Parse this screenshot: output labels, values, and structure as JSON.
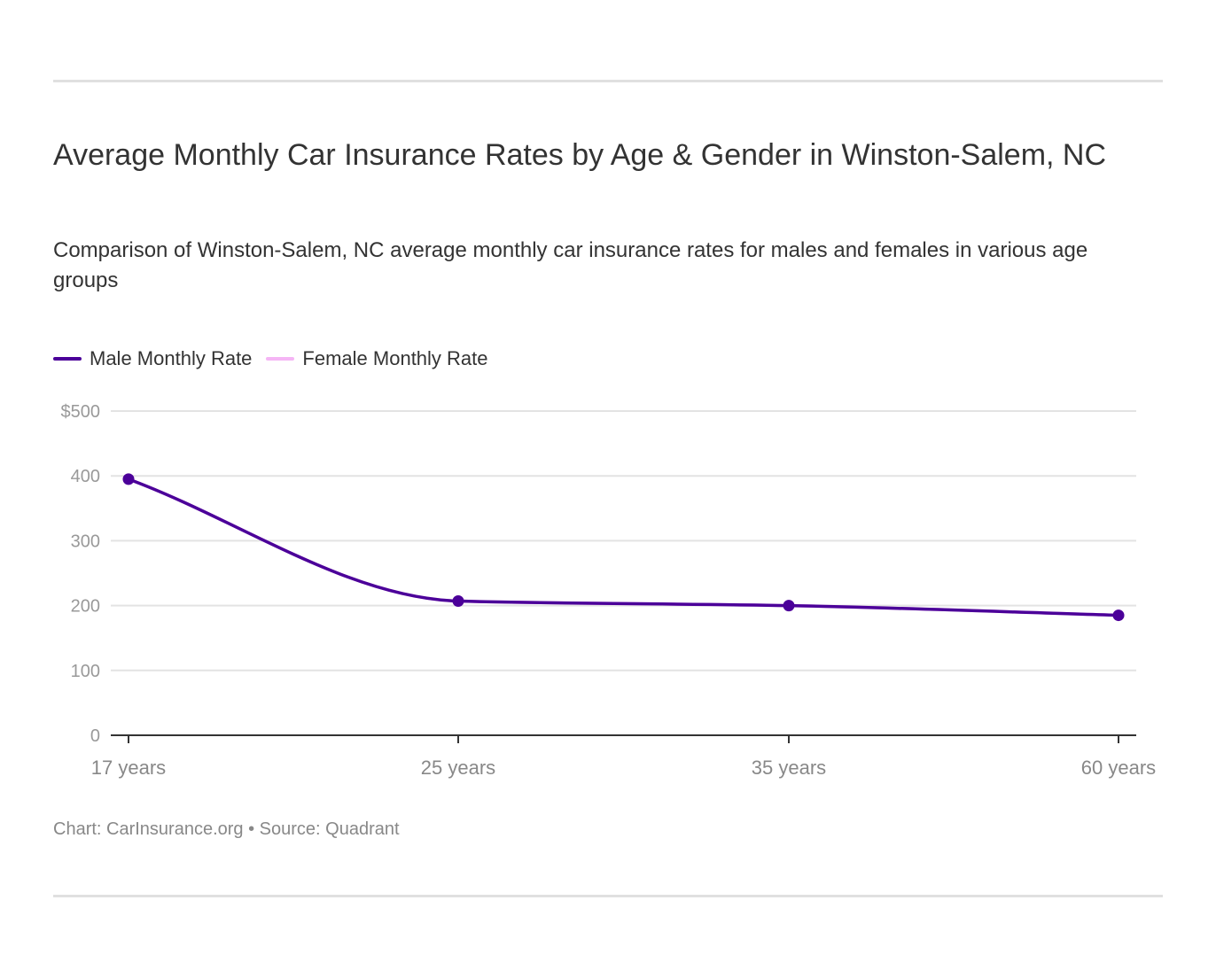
{
  "chart_data": {
    "type": "line",
    "title": "Average Monthly Car Insurance Rates by Age & Gender in Winston-Salem, NC",
    "subtitle": "Comparison of Winston-Salem, NC average monthly car insurance rates for males and females in various age groups",
    "categories": [
      "17 years",
      "25 years",
      "35 years",
      "60 years"
    ],
    "series": [
      {
        "name": "Female Monthly Rate",
        "color": "#f5b5f5",
        "values": [
          395,
          207,
          200,
          185
        ]
      },
      {
        "name": "Male Monthly Rate",
        "color": "#4b0099",
        "values": [
          395,
          207,
          200,
          185
        ]
      }
    ],
    "legend_order": [
      1,
      0
    ],
    "ylim": [
      0,
      500
    ],
    "yticks": [
      0,
      100,
      200,
      300,
      400,
      500
    ],
    "ytick_labels": [
      "0",
      "100",
      "200",
      "300",
      "400",
      "$500"
    ],
    "grid": true,
    "legend_position": "top-left",
    "xlabel": "",
    "ylabel": ""
  },
  "footer": "Chart: CarInsurance.org • Source: Quadrant"
}
